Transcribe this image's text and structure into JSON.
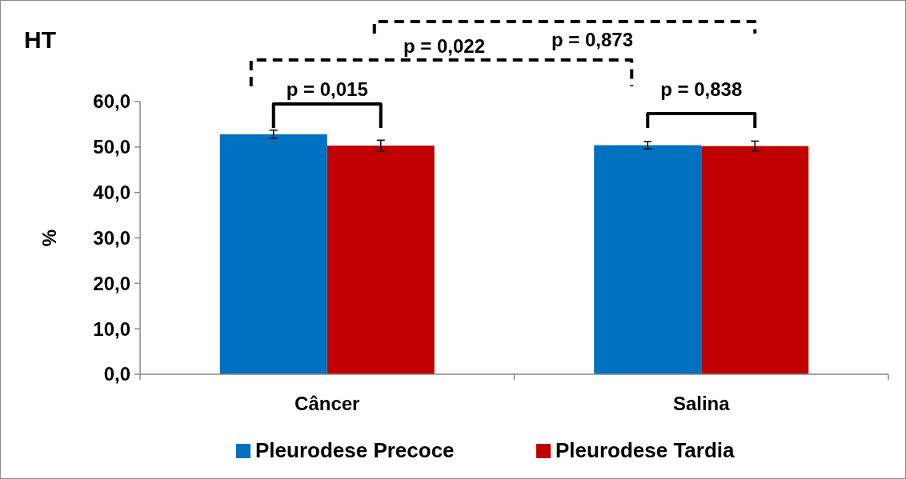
{
  "chart_data": {
    "type": "bar",
    "title": "HT",
    "ylabel": "%",
    "categories": [
      "Câncer",
      "Salina"
    ],
    "series": [
      {
        "name": "Pleurodese Precoce",
        "color": "#0070c0",
        "values": [
          52.8,
          50.4
        ],
        "errors": [
          0.9,
          0.8
        ]
      },
      {
        "name": "Pleurodese Tardia",
        "color": "#c00000",
        "values": [
          50.3,
          50.2
        ],
        "errors": [
          1.2,
          1.1
        ]
      }
    ],
    "ylim": [
      0,
      60
    ],
    "yticks": [
      {
        "value": 0,
        "label": "0,0"
      },
      {
        "value": 10,
        "label": "10,0"
      },
      {
        "value": 20,
        "label": "20,0"
      },
      {
        "value": 30,
        "label": "30,0"
      },
      {
        "value": 40,
        "label": "40,0"
      },
      {
        "value": 50,
        "label": "50,0"
      },
      {
        "value": 60,
        "label": "60,0"
      }
    ],
    "annotations": [
      "p = 0,015",
      "p = 0,838",
      "p = 0,022",
      "p = 0,873"
    ],
    "legend": "bottom",
    "grid": false
  }
}
